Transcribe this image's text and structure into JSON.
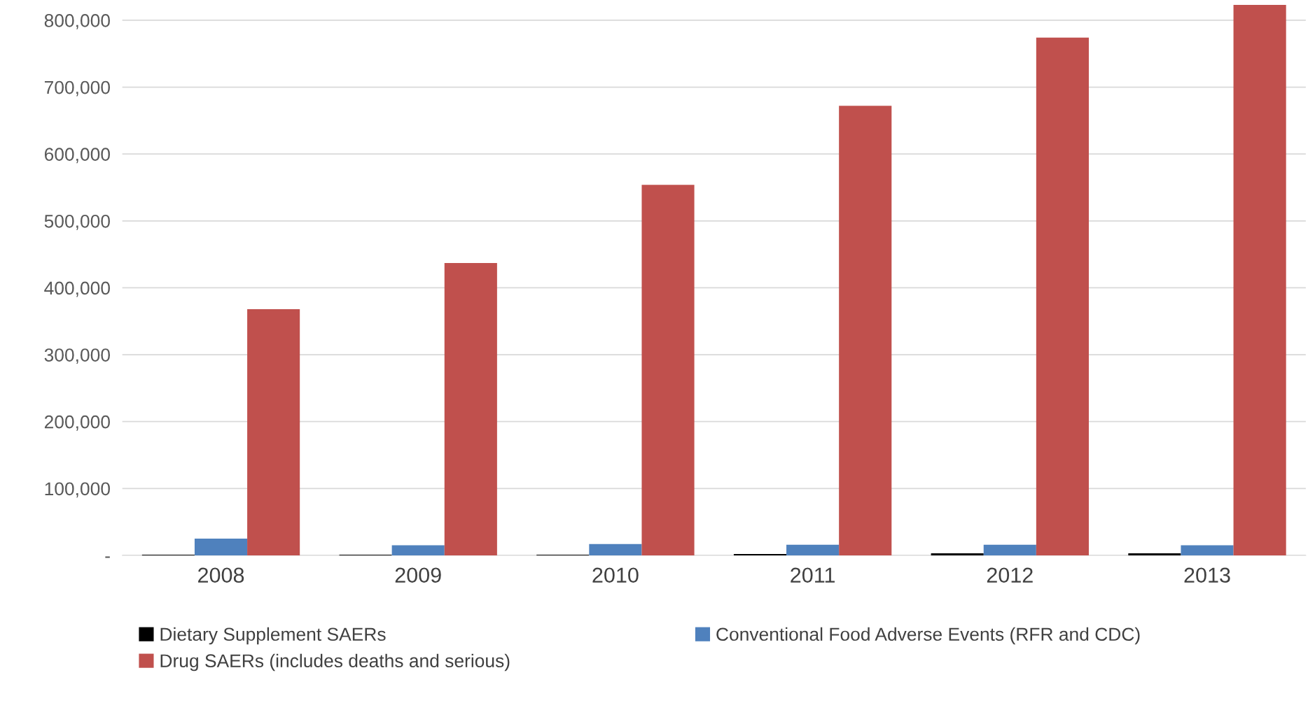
{
  "chart_data": {
    "type": "bar",
    "categories": [
      "2008",
      "2009",
      "2010",
      "2011",
      "2012",
      "2013"
    ],
    "series": [
      {
        "name": "Dietary Supplement SAERs",
        "color": "#000000",
        "values": [
          1000,
          1000,
          1000,
          2000,
          3000,
          3000
        ]
      },
      {
        "name": "Conventional Food Adverse Events (RFR and CDC)",
        "color": "#4f81bd",
        "values": [
          25000,
          15000,
          17000,
          16000,
          16000,
          15000
        ]
      },
      {
        "name": "Drug SAERs (includes deaths and serious)",
        "color": "#c0504d",
        "values": [
          368000,
          437000,
          554000,
          672000,
          774000,
          823000
        ]
      }
    ],
    "ylim": [
      0,
      825000
    ],
    "yticks": [
      {
        "value": 0,
        "label": "-"
      },
      {
        "value": 100000,
        "label": "100,000"
      },
      {
        "value": 200000,
        "label": "200,000"
      },
      {
        "value": 300000,
        "label": "300,000"
      },
      {
        "value": 400000,
        "label": "400,000"
      },
      {
        "value": 500000,
        "label": "500,000"
      },
      {
        "value": 600000,
        "label": "600,000"
      },
      {
        "value": 700000,
        "label": "700,000"
      },
      {
        "value": 800000,
        "label": "800,000"
      }
    ],
    "grid": "y",
    "legend": "bottom"
  }
}
